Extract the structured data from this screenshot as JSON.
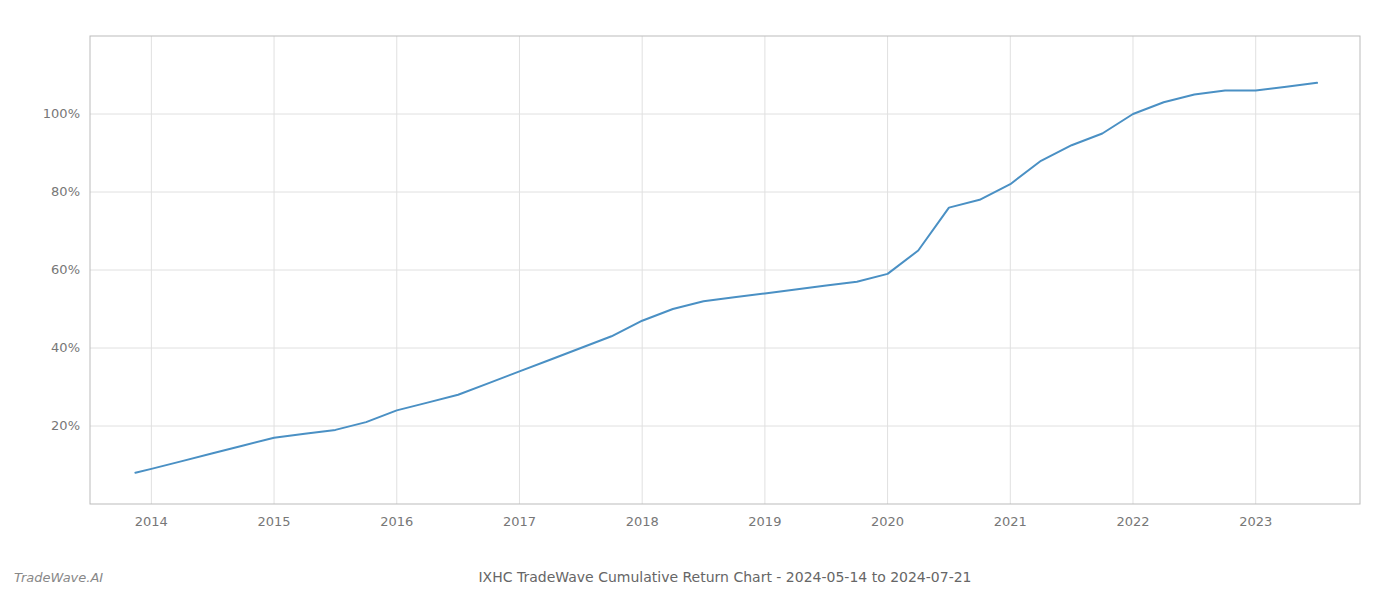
{
  "chart_data": {
    "type": "line",
    "title": "IXHC TradeWave Cumulative Return Chart - 2024-05-14 to 2024-07-21",
    "annotations": [
      "TradeWave.AI"
    ],
    "x": [
      2013.87,
      2014.0,
      2014.25,
      2014.5,
      2014.75,
      2015.0,
      2015.25,
      2015.5,
      2015.75,
      2016.0,
      2016.25,
      2016.5,
      2016.75,
      2017.0,
      2017.25,
      2017.5,
      2017.75,
      2018.0,
      2018.25,
      2018.5,
      2018.75,
      2019.0,
      2019.25,
      2019.5,
      2019.75,
      2020.0,
      2020.25,
      2020.5,
      2020.75,
      2021.0,
      2021.25,
      2021.5,
      2021.75,
      2022.0,
      2022.25,
      2022.5,
      2022.75,
      2023.0,
      2023.25,
      2023.5
    ],
    "values": [
      8,
      9,
      11,
      13,
      15,
      17,
      18,
      19,
      21,
      24,
      26,
      28,
      31,
      34,
      37,
      40,
      43,
      47,
      50,
      52,
      53,
      54,
      55,
      56,
      57,
      59,
      65,
      76,
      78,
      82,
      88,
      92,
      95,
      100,
      103,
      105,
      106,
      106,
      107,
      108
    ],
    "color": "#4a90c4",
    "xlim": [
      2013.5,
      2023.85
    ],
    "ylim": [
      0,
      120
    ],
    "xticks": [
      2014,
      2015,
      2016,
      2017,
      2018,
      2019,
      2020,
      2021,
      2022,
      2023
    ],
    "yticks": [
      {
        "value": 20,
        "label": "20%"
      },
      {
        "value": 40,
        "label": "40%"
      },
      {
        "value": 60,
        "label": "60%"
      },
      {
        "value": 80,
        "label": "80%"
      },
      {
        "value": 100,
        "label": "100%"
      }
    ],
    "grid": true
  }
}
